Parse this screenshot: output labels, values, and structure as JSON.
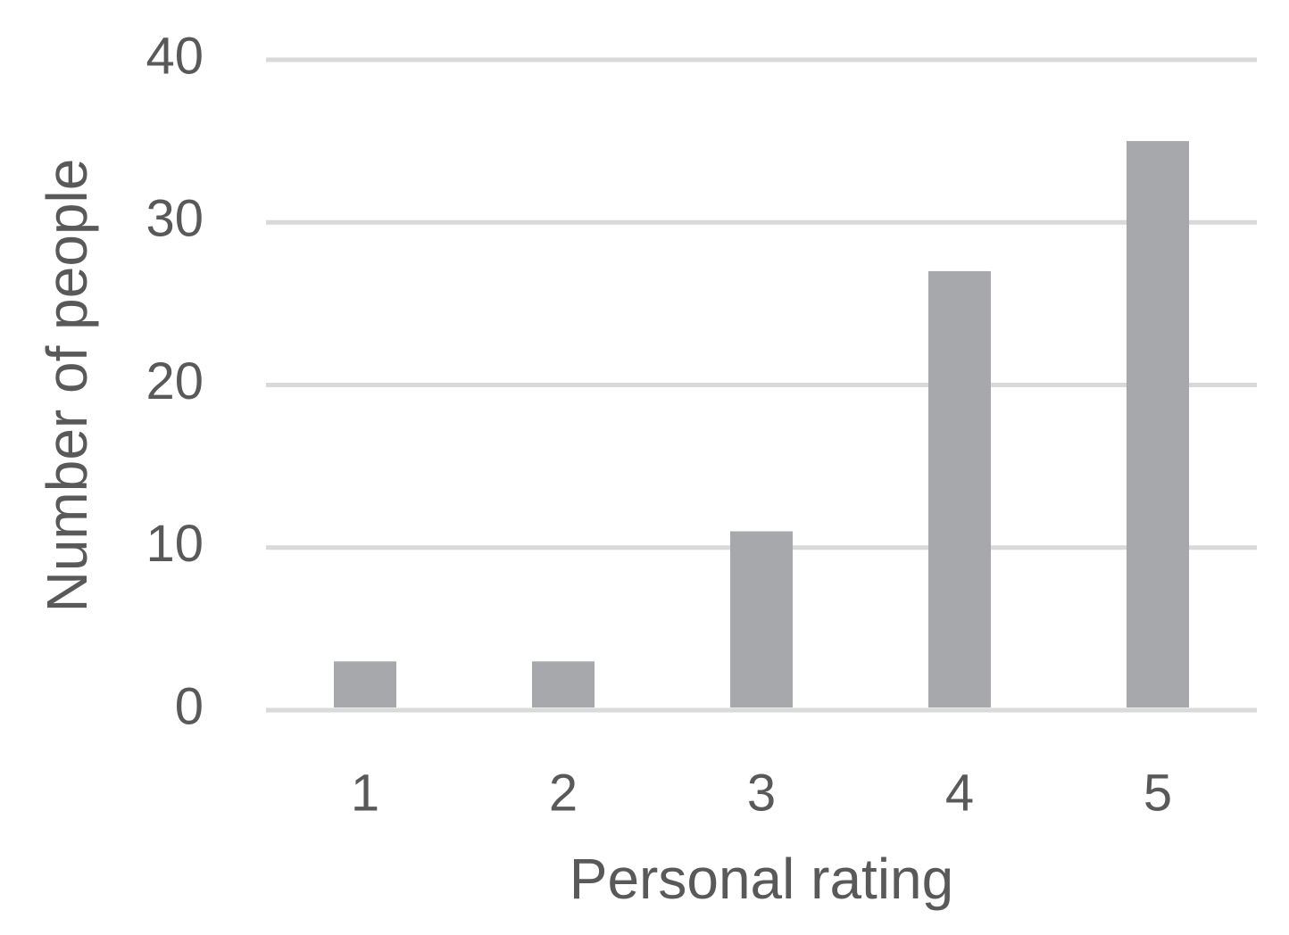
{
  "chart_data": {
    "type": "bar",
    "x_label": "Personal rating",
    "y_label": "Number of people",
    "categories": [
      "1",
      "2",
      "3",
      "4",
      "5"
    ],
    "values": [
      3,
      3,
      11,
      27,
      35
    ],
    "color": "#a7a8ab",
    "ylim": [
      0,
      40
    ],
    "yticks": [
      0,
      10,
      20,
      30,
      40
    ],
    "grid": true
  }
}
